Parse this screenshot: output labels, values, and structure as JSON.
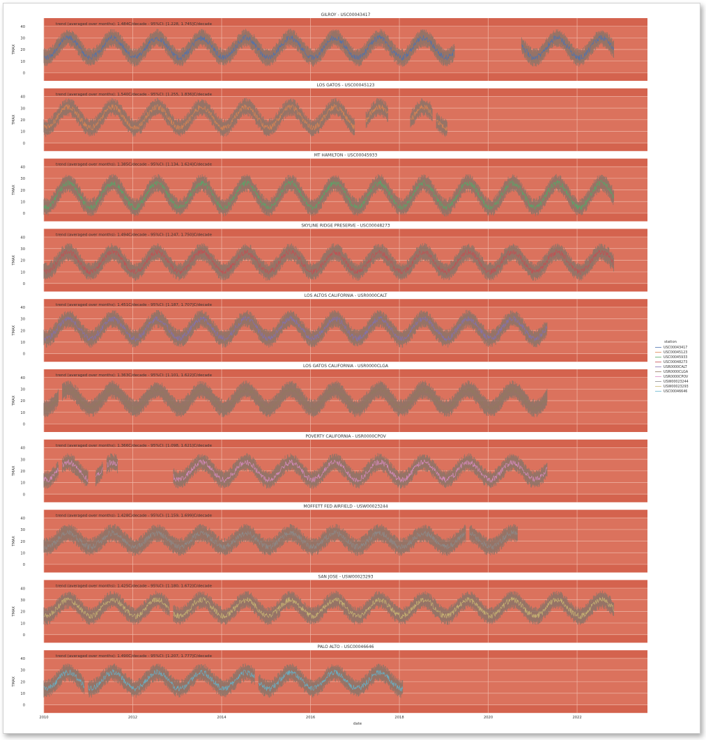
{
  "chart_data": {
    "type": "line",
    "xlabel": "date",
    "ylabel": "TMAX",
    "x_ticks": [
      "2010",
      "2012",
      "2014",
      "2016",
      "2018",
      "2020",
      "2022"
    ],
    "x_range": [
      "2010-01-01",
      "2023-08-01"
    ],
    "y_ticks": [
      0,
      10,
      20,
      30,
      40
    ],
    "ylim": [
      -7,
      47
    ],
    "grid": true,
    "legend": {
      "title": "station",
      "placement": "right",
      "entries": [
        "USC00043417",
        "USC00045123",
        "USC00045933",
        "USC00048273",
        "USR0000CALT",
        "USR0000CLGA",
        "USR0000CPOV",
        "USW00023244",
        "USW00023293",
        "USC00046646"
      ]
    },
    "panels": [
      {
        "title": "GILROY - USC00043417",
        "annotation": "trend (averaged over months): 1.484C/decade - 95%CI: [1.228, 1.745]C/decade",
        "color": "#4c72b0",
        "mean": 21.5,
        "amplitude": 8.5,
        "coverage": [
          [
            "2010-01",
            "2018-12"
          ],
          [
            "2019-01",
            "2019-03"
          ],
          [
            "2020-10",
            "2022-10"
          ]
        ]
      },
      {
        "title": "LOS GATOS - USC00045123",
        "annotation": "trend (averaged over months): 1.540C/decade - 95%CI: [1.255, 1.836]C/decade",
        "color": "#dd8452",
        "mean": 22,
        "amplitude": 9,
        "coverage": [
          [
            "2010-01",
            "2016-12"
          ],
          [
            "2017-04",
            "2017-09"
          ],
          [
            "2018-04",
            "2018-09"
          ],
          [
            "2018-11",
            "2019-01"
          ]
        ]
      },
      {
        "title": "MT HAMILTON - USC00045933",
        "annotation": "trend (averaged over months): 1.385C/decade - 95%CI: [1.134, 1.624]C/decade",
        "color": "#55a868",
        "mean": 15.5,
        "amplitude": 10.5,
        "coverage": [
          [
            "2010-01",
            "2022-10"
          ]
        ]
      },
      {
        "title": "SKYLINE RIDGE PRESERVE - USC00048273",
        "annotation": "trend (averaged over months): 1.494C/decade - 95%CI: [1.247, 1.750]C/decade",
        "color": "#c44e52",
        "mean": 18.5,
        "amplitude": 8.5,
        "coverage": [
          [
            "2010-01",
            "2022-10"
          ]
        ]
      },
      {
        "title": "LOS ALTOS CALIFORNIA - USR0000CALT",
        "annotation": "trend (averaged over months): 1.451C/decade - 95%CI: [1.187, 1.707]C/decade",
        "color": "#8172b3",
        "mean": 21.5,
        "amplitude": 8.5,
        "coverage": [
          [
            "2010-01",
            "2021-04"
          ]
        ]
      },
      {
        "title": "LOS GATOS CALIFORNIA - USR0000CLGA",
        "annotation": "trend (averaged over months): 1.363C/decade - 95%CI: [1.101, 1.622]C/decade",
        "color": "#937860",
        "mean": 21.5,
        "amplitude": 8,
        "coverage": [
          [
            "2010-01",
            "2010-04"
          ],
          [
            "2010-06",
            "2021-04"
          ]
        ]
      },
      {
        "title": "POVERTY CALIFORNIA - USR0000CPOV",
        "annotation": "trend (averaged over months): 1.366C/decade - 95%CI: [1.098, 1.621]C/decade",
        "color": "#da8bc3",
        "mean": 20,
        "amplitude": 7.5,
        "coverage": [
          [
            "2010-01",
            "2010-04"
          ],
          [
            "2010-06",
            "2010-12"
          ],
          [
            "2011-03",
            "2011-04"
          ],
          [
            "2011-06",
            "2011-08"
          ],
          [
            "2012-12",
            "2021-04"
          ]
        ]
      },
      {
        "title": "MOFFETT FED AIRFIELD - USW00023244",
        "annotation": "trend (averaged over months): 1.428C/decade - 95%CI: [1.159, 1.699]C/decade",
        "color": "#8c8c8c",
        "mean": 21,
        "amplitude": 6,
        "coverage": [
          [
            "2010-01",
            "2019-06"
          ],
          [
            "2019-08",
            "2020-08"
          ]
        ]
      },
      {
        "title": "SAN JOSE - USW00023293",
        "annotation": "trend (averaged over months): 1.425C/decade - 95%CI: [1.180, 1.672]C/decade",
        "color": "#ccb974",
        "mean": 23,
        "amplitude": 7,
        "coverage": [
          [
            "2010-01",
            "2012-10"
          ],
          [
            "2012-12",
            "2022-10"
          ]
        ]
      },
      {
        "title": "PALO ALTO - USC00046646",
        "annotation": "trend (averaged over months): 1.490C/decade - 95%CI: [1.207, 1.777]C/decade",
        "color": "#64b5cd",
        "mean": 21,
        "amplitude": 7,
        "coverage": [
          [
            "2010-01",
            "2010-11"
          ],
          [
            "2011-01",
            "2014-09"
          ],
          [
            "2014-11",
            "2018-01"
          ]
        ]
      }
    ]
  },
  "colors": {
    "axes_bg": "#d4634e",
    "band_light": "#e0806a",
    "grid": "#f0b8a8",
    "band_stroke": "#8a7367"
  }
}
